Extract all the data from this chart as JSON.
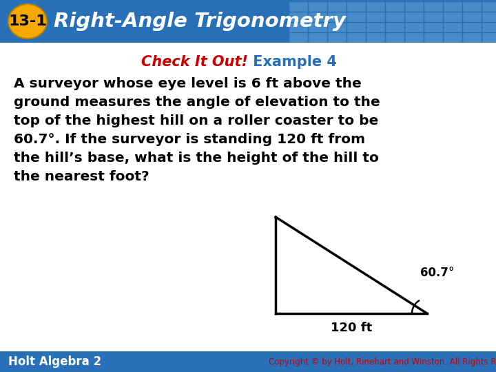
{
  "header_bg_color": "#2970b8",
  "header_text": "Right-Angle Trigonometry",
  "header_number": "13-1",
  "header_number_bg": "#f5a800",
  "body_bg_color": "#ffffff",
  "check_it_out_text": "Check It Out!",
  "check_it_out_color": "#cc0000",
  "example_text": " Example 4",
  "example_color": "#2970b8",
  "subtitle_fontsize": 15,
  "body_lines": [
    "A surveyor whose eye level is 6 ft above the",
    "ground measures the angle of elevation to the",
    "top of the highest hill on a roller coaster to be",
    "60.7°. If the surveyor is standing 120 ft from",
    "the hill’s base, what is the height of the hill to",
    "the nearest foot?"
  ],
  "body_fontsize": 14.5,
  "body_color": "#000000",
  "footer_text": "Holt Algebra 2",
  "copyright_text": "Copyright © by Holt, Rinehart and Winston. All Rights Reserved.",
  "copyright_color": "#cc0000",
  "copyright_fontsize": 8.5,
  "triangle_angle_label": "60.7°",
  "triangle_base_label": "120 ft"
}
